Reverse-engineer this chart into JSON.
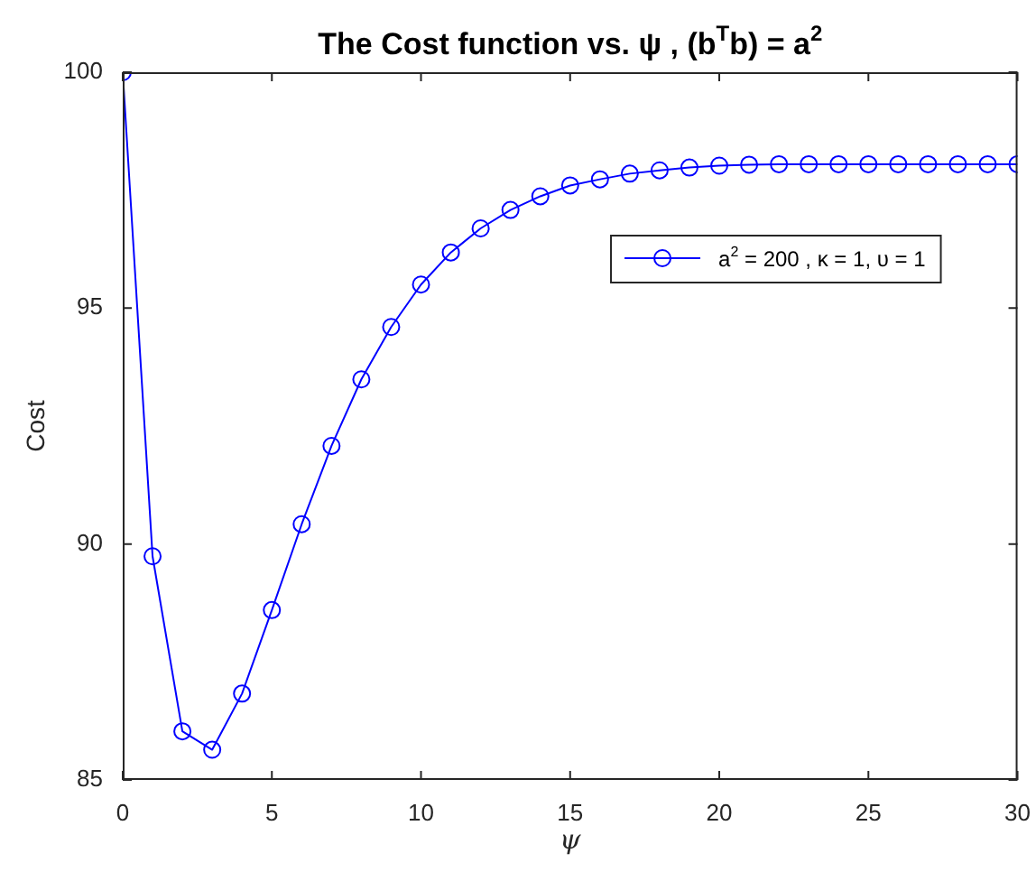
{
  "chart_data": {
    "type": "line",
    "title": "The Cost function vs. ψ , (b$^{T}$b) = a$^{2}$",
    "xlabel": "ψ",
    "ylabel": "Cost",
    "x": [
      0,
      1,
      2,
      3,
      4,
      5,
      6,
      7,
      8,
      9,
      10,
      11,
      12,
      13,
      14,
      15,
      16,
      17,
      18,
      19,
      20,
      21,
      22,
      23,
      24,
      25,
      26,
      27,
      28,
      29,
      30
    ],
    "series": [
      {
        "name": "a$^{2}$ = 200 , κ = 1, υ = 1",
        "color": "#0000ff",
        "values": [
          100,
          89.74,
          86.03,
          85.64,
          86.83,
          88.6,
          90.42,
          92.08,
          93.49,
          94.6,
          95.5,
          96.18,
          96.69,
          97.08,
          97.37,
          97.6,
          97.73,
          97.85,
          97.92,
          97.98,
          98.02,
          98.04,
          98.05,
          98.05,
          98.05,
          98.05,
          98.05,
          98.05,
          98.05,
          98.05,
          98.05
        ]
      }
    ],
    "xlim": [
      0,
      30
    ],
    "xticks": [
      0,
      5,
      10,
      15,
      20,
      25,
      30
    ],
    "ylim": [
      85,
      100
    ],
    "yticks": [
      85,
      90,
      95,
      100
    ],
    "marker": "circle",
    "line_style": "solid",
    "grid": false,
    "legend": "top right"
  }
}
